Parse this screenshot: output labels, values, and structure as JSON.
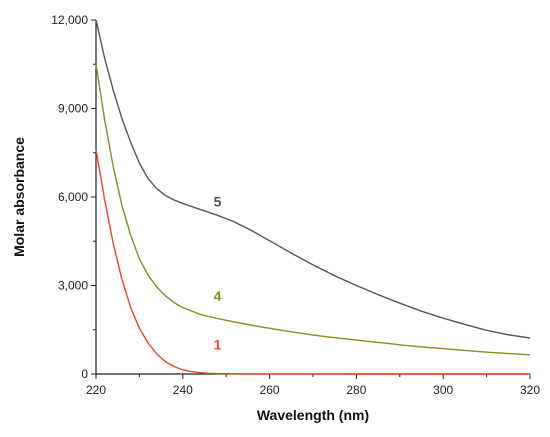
{
  "chart_data": {
    "type": "line",
    "title": "",
    "xlabel": "Wavelength (nm)",
    "ylabel": "Molar absorbance",
    "xlim": [
      220,
      320
    ],
    "ylim": [
      0,
      12000
    ],
    "x_ticks": [
      220,
      240,
      260,
      280,
      300,
      320
    ],
    "y_ticks": [
      0,
      3000,
      6000,
      9000,
      12000
    ],
    "x_tick_labels": [
      "220",
      "240",
      "260",
      "280",
      "300",
      "320"
    ],
    "y_tick_labels": [
      "0",
      "3,000",
      "6,000",
      "9,000",
      "12,000"
    ],
    "grid": false,
    "legend": "inline labels",
    "series": [
      {
        "name": "5",
        "color": "#555555",
        "label_at": [
          248,
          5850
        ],
        "x": [
          220,
          222,
          224,
          226,
          228,
          230,
          232,
          234,
          236,
          238,
          240,
          244,
          248,
          252,
          256,
          260,
          265,
          270,
          275,
          280,
          285,
          290,
          295,
          300,
          305,
          310,
          315,
          320
        ],
        "y": [
          12000,
          10700,
          9600,
          8650,
          7850,
          7150,
          6620,
          6280,
          6050,
          5900,
          5780,
          5580,
          5380,
          5150,
          4850,
          4520,
          4100,
          3700,
          3330,
          3000,
          2690,
          2400,
          2130,
          1890,
          1680,
          1480,
          1330,
          1220
        ]
      },
      {
        "name": "4",
        "color": "#8c8c1e",
        "label_at": [
          248,
          2650
        ],
        "x": [
          220,
          222,
          224,
          226,
          228,
          230,
          232,
          234,
          236,
          238,
          240,
          244,
          248,
          252,
          256,
          260,
          265,
          270,
          275,
          280,
          285,
          290,
          295,
          300,
          305,
          310,
          315,
          320
        ],
        "y": [
          10500,
          8600,
          7000,
          5700,
          4700,
          3900,
          3350,
          2950,
          2650,
          2420,
          2250,
          2020,
          1880,
          1760,
          1650,
          1550,
          1430,
          1320,
          1230,
          1150,
          1070,
          990,
          920,
          860,
          800,
          740,
          690,
          650
        ]
      },
      {
        "name": "1",
        "color": "#e8442c",
        "label_at": [
          248,
          1000
        ],
        "x": [
          220,
          222,
          224,
          226,
          228,
          230,
          232,
          234,
          236,
          238,
          240,
          242,
          244,
          246,
          248,
          250,
          255,
          260,
          270,
          280,
          290,
          300,
          310,
          320
        ],
        "y": [
          7600,
          5900,
          4400,
          3200,
          2250,
          1550,
          1050,
          680,
          420,
          250,
          140,
          80,
          45,
          25,
          15,
          10,
          5,
          3,
          2,
          1,
          1,
          1,
          1,
          1
        ]
      }
    ]
  }
}
